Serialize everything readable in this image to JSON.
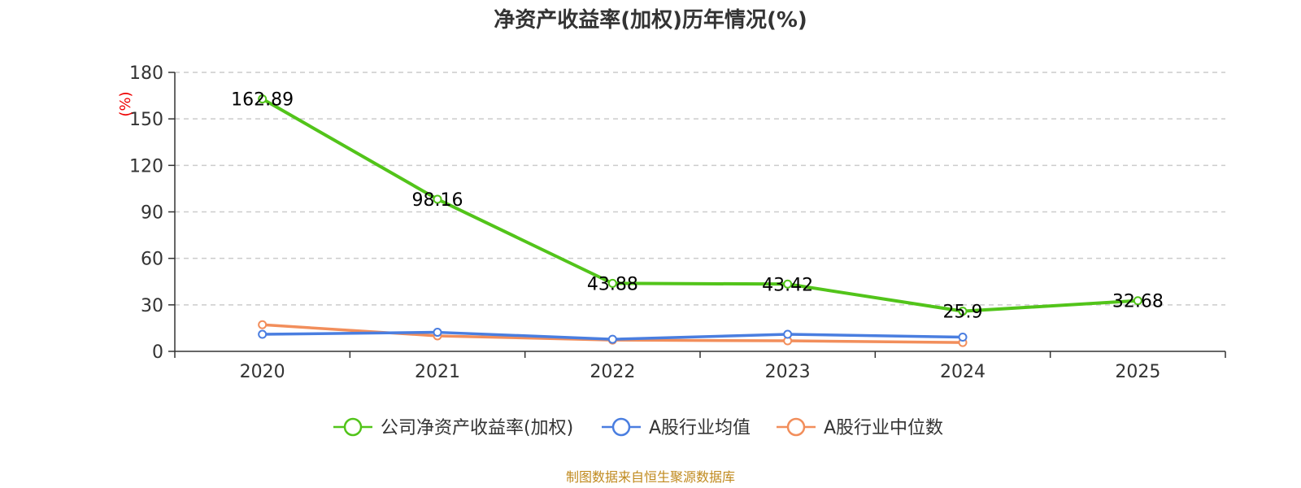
{
  "chart_data": {
    "type": "line",
    "title": "净资产收益率(加权)历年情况(%)",
    "ylabel": "(%)",
    "xlabel": "",
    "categories": [
      "2020",
      "2021",
      "2022",
      "2023",
      "2024",
      "2025"
    ],
    "ylim": [
      0,
      180
    ],
    "yticks": [
      0,
      30,
      60,
      90,
      120,
      150,
      180
    ],
    "grid": true,
    "legend_position": "bottom",
    "series": [
      {
        "name": "公司净资产收益率(加权)",
        "color": "#52c41a",
        "values": [
          162.89,
          98.16,
          43.88,
          43.42,
          25.9,
          32.68
        ],
        "data_labels": [
          "162.89",
          "98.16",
          "43.88",
          "43.42",
          "25.9",
          "32.68"
        ]
      },
      {
        "name": "A股行业均值",
        "color": "#4a7ee0",
        "values": [
          11.0,
          12.3,
          7.8,
          11.0,
          9.2,
          null
        ]
      },
      {
        "name": "A股行业中位数",
        "color": "#f28e5b",
        "values": [
          17.2,
          10.0,
          7.3,
          6.8,
          5.7,
          null
        ]
      }
    ],
    "source_note": "制图数据来自恒生聚源数据库"
  }
}
